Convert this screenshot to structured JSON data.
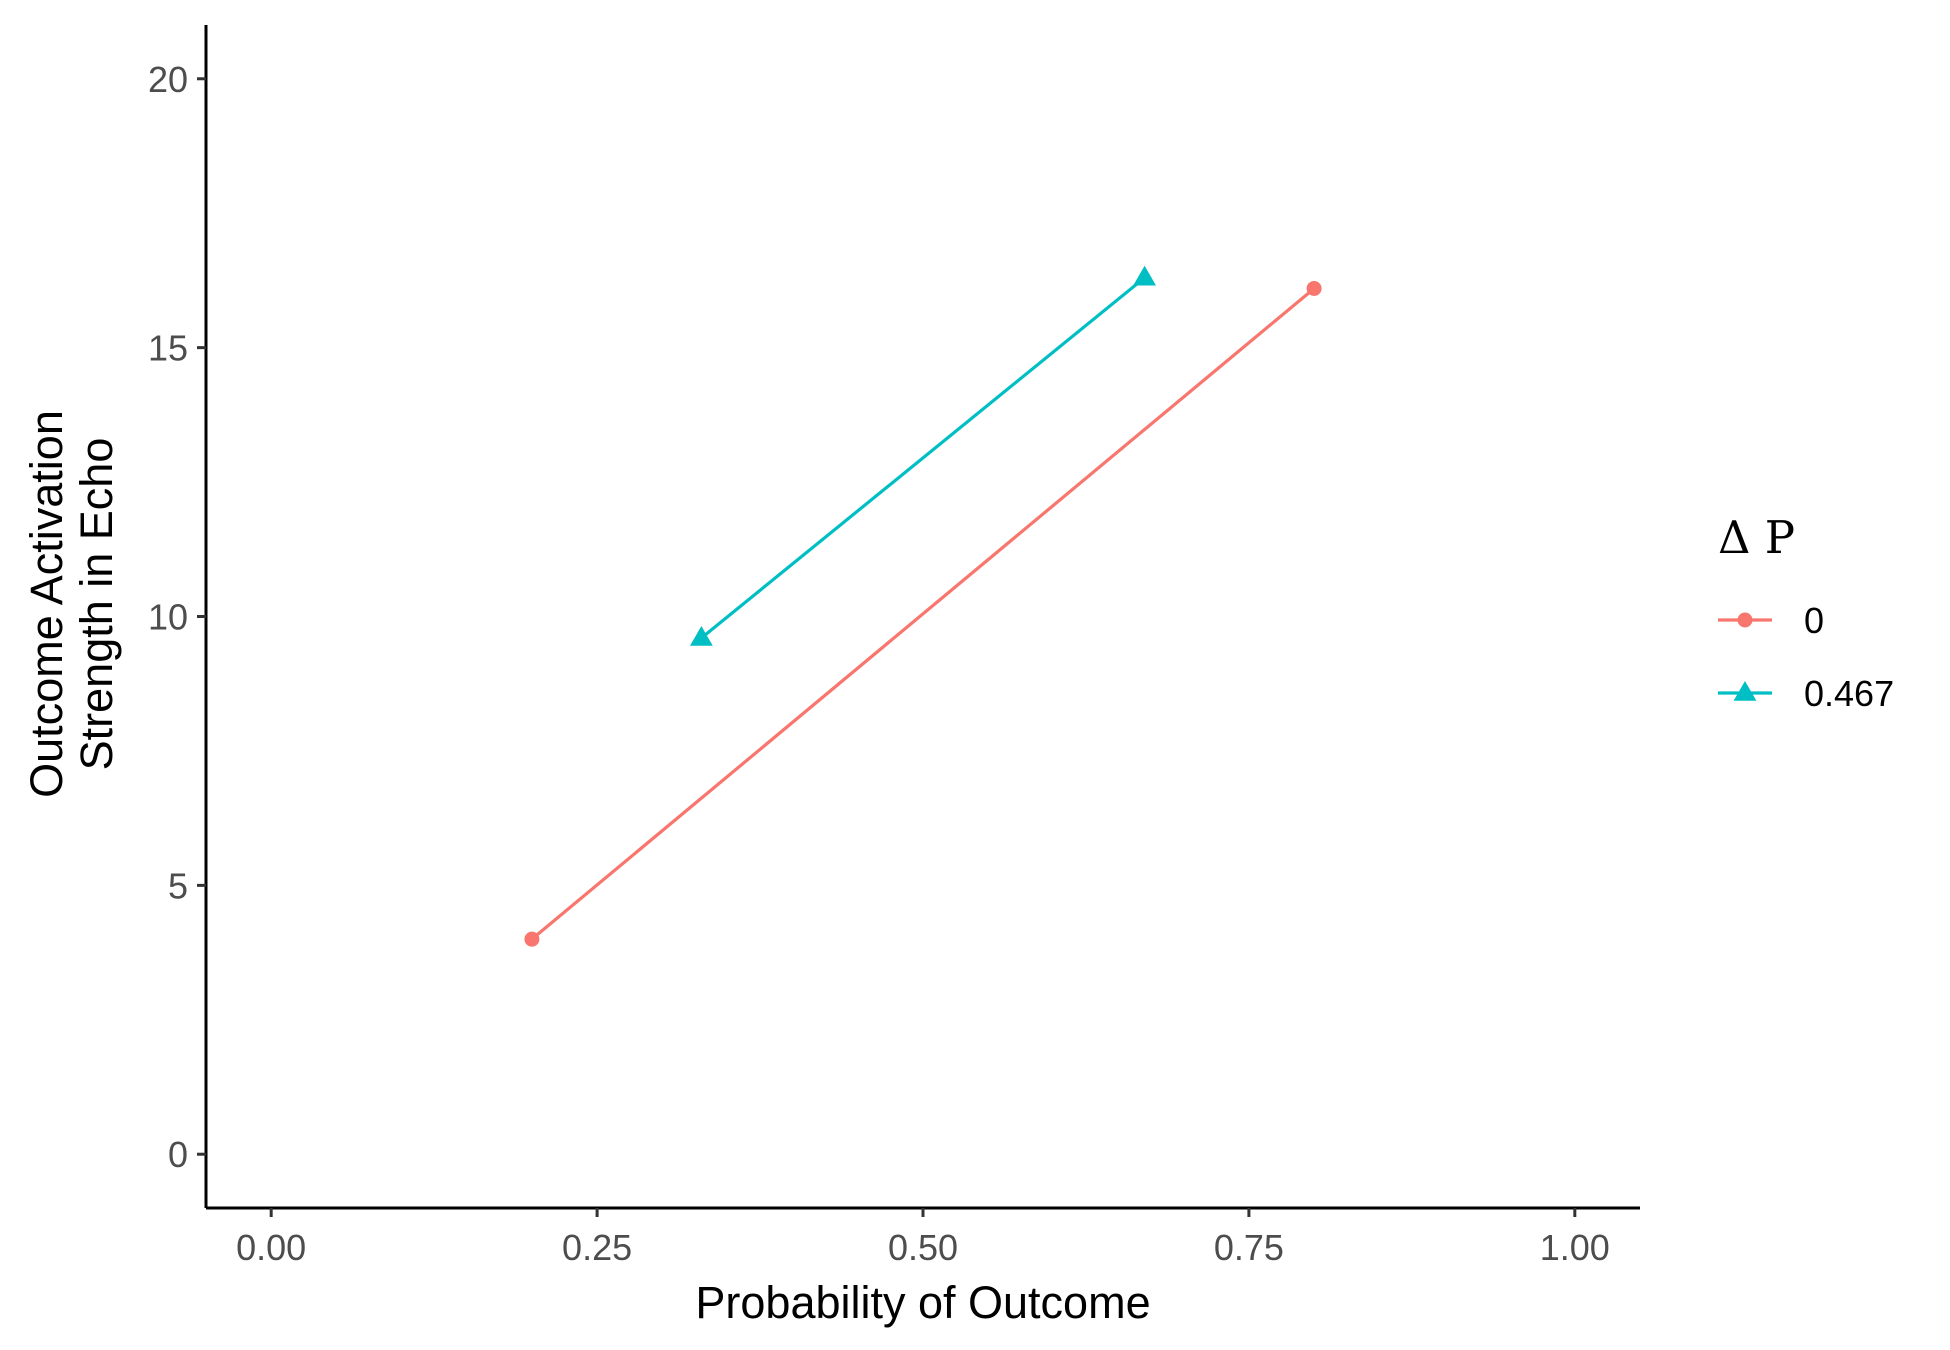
{
  "chart_data": {
    "type": "line",
    "xlabel": "Probability of Outcome",
    "ylabel": "Outcome Activation Strength in Echo",
    "ylabel_lines": [
      "Outcome Activation",
      "Strength in Echo"
    ],
    "xlim": [
      -0.05,
      1.05
    ],
    "ylim": [
      -1,
      21
    ],
    "x_ticks": [
      0,
      0.25,
      0.5,
      0.75,
      1.0
    ],
    "x_tick_labels": [
      "0.00",
      "0.25",
      "0.50",
      "0.75",
      "1.00"
    ],
    "y_ticks": [
      0,
      5,
      10,
      15,
      20
    ],
    "y_tick_labels": [
      "0",
      "5",
      "10",
      "15",
      "20"
    ],
    "grid": false,
    "legend": {
      "title": "Δ P",
      "placement": "right"
    },
    "series": [
      {
        "name": "0",
        "color": "#F8766D",
        "marker": "circle",
        "x": [
          0.2,
          0.8
        ],
        "y": [
          4.0,
          16.1
        ]
      },
      {
        "name": "0.467",
        "color": "#00BFC4",
        "marker": "triangle",
        "x": [
          0.33,
          0.67
        ],
        "y": [
          9.6,
          16.3
        ]
      }
    ]
  }
}
